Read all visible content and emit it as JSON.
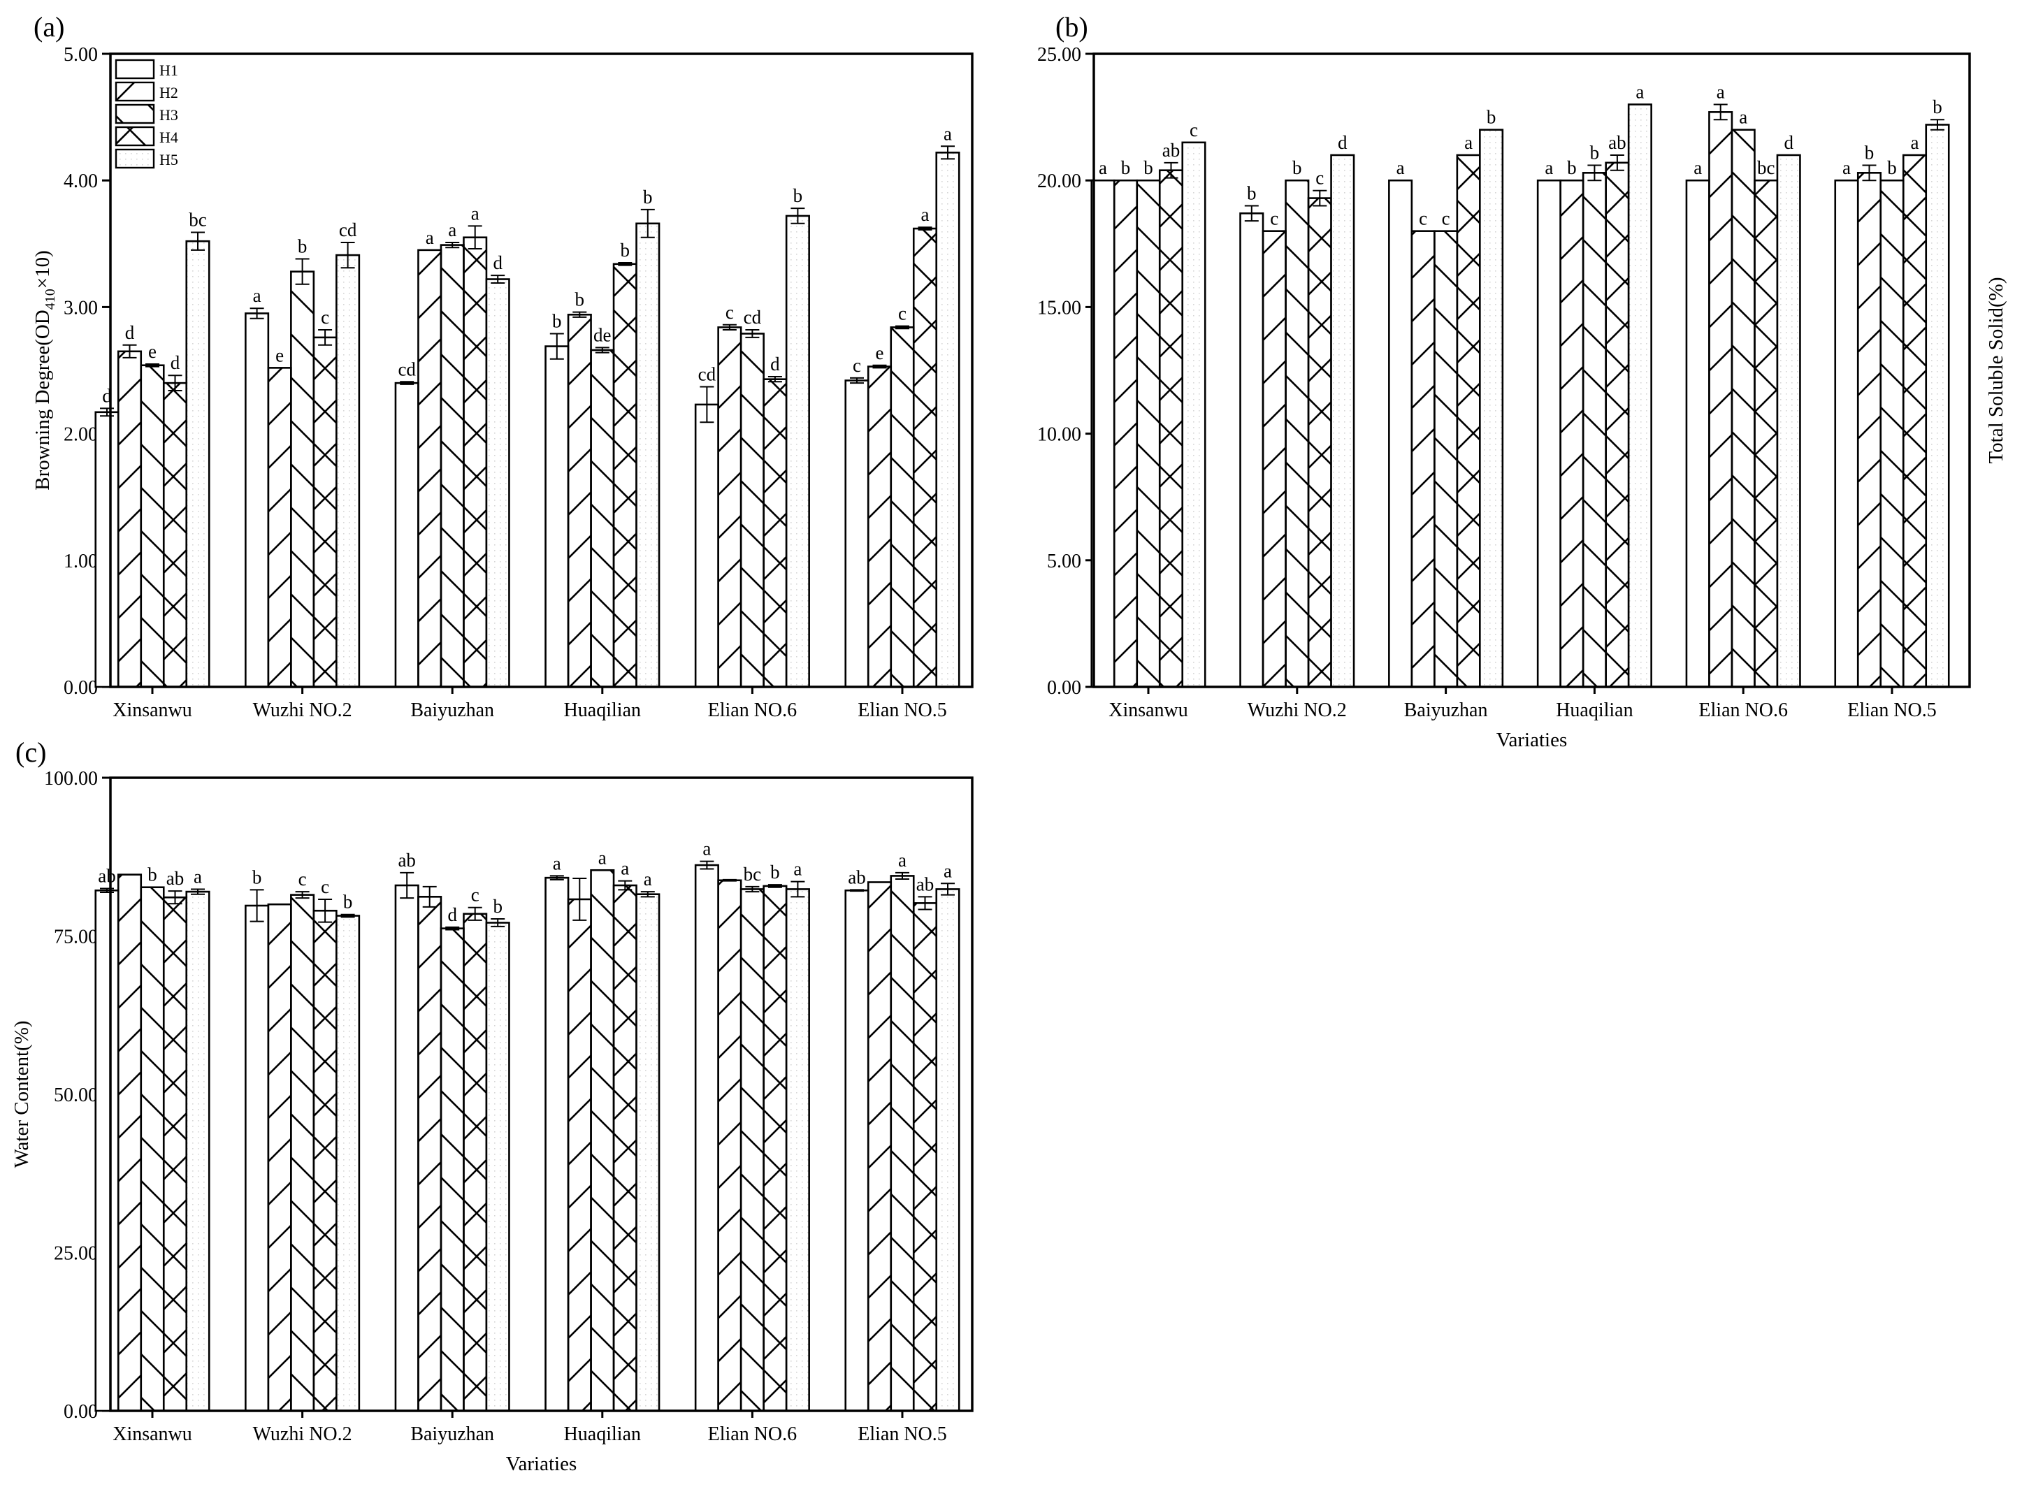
{
  "series_names": [
    "H1",
    "H2",
    "H3",
    "H4",
    "H5"
  ],
  "chart_data": [
    {
      "type": "bar",
      "panel_label": "(a)",
      "title": "",
      "xlabel": "",
      "ylabel": "Browning Degree(OD",
      "ylabel_sub": "410",
      "ylabel_tail": "×10)",
      "ylim": [
        0,
        5
      ],
      "yticks": [
        "0.00",
        "1.00",
        "2.00",
        "3.00",
        "4.00",
        "5.00"
      ],
      "ytick_values": [
        0,
        1,
        2,
        3,
        4,
        5
      ],
      "ylabel_side": "left",
      "legend": "top-left",
      "grid": false,
      "categories": [
        "Xinsanwu",
        "Wuzhi NO.2",
        "Baiyuzhan",
        "Huaqilian",
        "Elian NO.6",
        "Elian NO.5"
      ],
      "series": [
        {
          "name": "H1",
          "pattern": "none",
          "values": [
            2.17,
            2.95,
            2.4,
            2.69,
            2.23,
            2.42
          ],
          "errors": [
            0.03,
            0.04,
            0.01,
            0.1,
            0.14,
            0.02
          ],
          "letters": [
            "d",
            "a",
            "cd",
            "b",
            "cd",
            "c"
          ]
        },
        {
          "name": "H2",
          "pattern": "forward",
          "values": [
            2.65,
            2.52,
            3.45,
            2.94,
            2.84,
            2.53
          ],
          "errors": [
            0.05,
            0.0,
            0.0,
            0.02,
            0.02,
            0.01
          ],
          "letters": [
            "d",
            "e",
            "a",
            "b",
            "c",
            "e"
          ]
        },
        {
          "name": "H3",
          "pattern": "back",
          "values": [
            2.54,
            3.28,
            3.49,
            2.66,
            2.79,
            2.84
          ],
          "errors": [
            0.01,
            0.1,
            0.02,
            0.02,
            0.03,
            0.01
          ],
          "letters": [
            "e",
            "b",
            "a",
            "de",
            "cd",
            "c"
          ]
        },
        {
          "name": "H4",
          "pattern": "cross",
          "values": [
            2.4,
            2.76,
            3.55,
            3.34,
            2.43,
            3.62
          ],
          "errors": [
            0.06,
            0.06,
            0.09,
            0.01,
            0.02,
            0.01
          ],
          "letters": [
            "d",
            "c",
            "a",
            "b",
            "d",
            "a"
          ]
        },
        {
          "name": "H5",
          "pattern": "dots",
          "values": [
            3.52,
            3.41,
            3.22,
            3.66,
            3.72,
            4.22
          ],
          "errors": [
            0.07,
            0.1,
            0.03,
            0.11,
            0.06,
            0.05
          ],
          "letters": [
            "bc",
            "cd",
            "d",
            "b",
            "b",
            "a"
          ]
        }
      ]
    },
    {
      "type": "bar",
      "panel_label": "(b)",
      "title": "",
      "xlabel": "Variaties",
      "ylabel": "Total Soluble Solid(%)",
      "ylim": [
        0,
        25
      ],
      "yticks": [
        "0.00",
        "5.00",
        "10.00",
        "15.00",
        "20.00",
        "25.00"
      ],
      "ytick_values": [
        0,
        5,
        10,
        15,
        20,
        25
      ],
      "ylabel_side": "right",
      "legend": "none",
      "grid": false,
      "categories": [
        "Xinsanwu",
        "Wuzhi NO.2",
        "Baiyuzhan",
        "Huaqilian",
        "Elian NO.6",
        "Elian NO.5"
      ],
      "series": [
        {
          "name": "H1",
          "pattern": "none",
          "values": [
            20.0,
            18.7,
            20.0,
            20.0,
            20.0,
            20.0
          ],
          "errors": [
            0,
            0.3,
            0,
            0,
            0,
            0
          ],
          "letters": [
            "a",
            "b",
            "a",
            "a",
            "a",
            "a"
          ]
        },
        {
          "name": "H2",
          "pattern": "forward",
          "values": [
            20.0,
            18.0,
            18.0,
            20.0,
            22.7,
            20.3
          ],
          "errors": [
            0,
            0,
            0,
            0,
            0.3,
            0.3
          ],
          "letters": [
            "b",
            "c",
            "c",
            "b",
            "a",
            "b"
          ]
        },
        {
          "name": "H3",
          "pattern": "back",
          "values": [
            20.0,
            20.0,
            18.0,
            20.3,
            22.0,
            20.0
          ],
          "errors": [
            0,
            0,
            0,
            0.3,
            0,
            0
          ],
          "letters": [
            "b",
            "b",
            "c",
            "b",
            "a",
            "b"
          ]
        },
        {
          "name": "H4",
          "pattern": "cross",
          "values": [
            20.4,
            19.3,
            21.0,
            20.7,
            20.0,
            21.0
          ],
          "errors": [
            0.3,
            0.3,
            0,
            0.3,
            0,
            0
          ],
          "letters": [
            "ab",
            "c",
            "a",
            "ab",
            "bc",
            "a"
          ]
        },
        {
          "name": "H5",
          "pattern": "dots",
          "values": [
            21.5,
            21.0,
            22.0,
            23.0,
            21.0,
            22.2
          ],
          "errors": [
            0,
            0,
            0,
            0,
            0,
            0.2
          ],
          "letters": [
            "c",
            "d",
            "b",
            "a",
            "d",
            "b"
          ]
        }
      ]
    },
    {
      "type": "bar",
      "panel_label": "(c)",
      "title": "",
      "xlabel": "Variaties",
      "ylabel": "Water Content(%)",
      "ylim": [
        0,
        100
      ],
      "yticks": [
        "0.00",
        "25.00",
        "50.00",
        "75.00",
        "100.00"
      ],
      "ytick_values": [
        0,
        25,
        50,
        75,
        100
      ],
      "ylabel_side": "left",
      "legend": "none",
      "grid": false,
      "categories": [
        "Xinsanwu",
        "Wuzhi NO.2",
        "Baiyuzhan",
        "Huaqilian",
        "Elian NO.6",
        "Elian NO.5"
      ],
      "series": [
        {
          "name": "H1",
          "pattern": "none",
          "values": [
            82.2,
            79.8,
            83.0,
            84.2,
            86.2,
            82.2
          ],
          "errors": [
            0.3,
            2.5,
            2.0,
            0.3,
            0.6,
            0.1
          ],
          "letters": [
            "ab",
            "b",
            "ab",
            "a",
            "a",
            "ab"
          ]
        },
        {
          "name": "H2",
          "pattern": "forward",
          "values": [
            84.7,
            80.0,
            81.2,
            80.8,
            83.8,
            83.5
          ],
          "errors": [
            0,
            0,
            1.6,
            3.3,
            0.1,
            0
          ],
          "letters": [
            "",
            "",
            "",
            "",
            "",
            ""
          ]
        },
        {
          "name": "H3",
          "pattern": "back",
          "values": [
            82.7,
            81.5,
            76.2,
            85.4,
            82.4,
            84.5
          ],
          "errors": [
            0,
            0.5,
            0.2,
            0,
            0.4,
            0.5
          ],
          "letters": [
            "b",
            "c",
            "d",
            "a",
            "bc",
            "a"
          ]
        },
        {
          "name": "H4",
          "pattern": "cross",
          "values": [
            81.1,
            79.0,
            78.5,
            83.0,
            82.9,
            80.2
          ],
          "errors": [
            1.0,
            1.8,
            1.0,
            0.7,
            0.2,
            1.0
          ],
          "letters": [
            "ab",
            "c",
            "c",
            "a",
            "b",
            "ab"
          ]
        },
        {
          "name": "H5",
          "pattern": "dots",
          "values": [
            82.0,
            78.2,
            77.1,
            81.6,
            82.4,
            82.4
          ],
          "errors": [
            0.4,
            0.2,
            0.6,
            0.4,
            1.2,
            0.9
          ],
          "letters": [
            "a",
            "b",
            "b",
            "a",
            "a",
            "a"
          ]
        }
      ]
    }
  ]
}
